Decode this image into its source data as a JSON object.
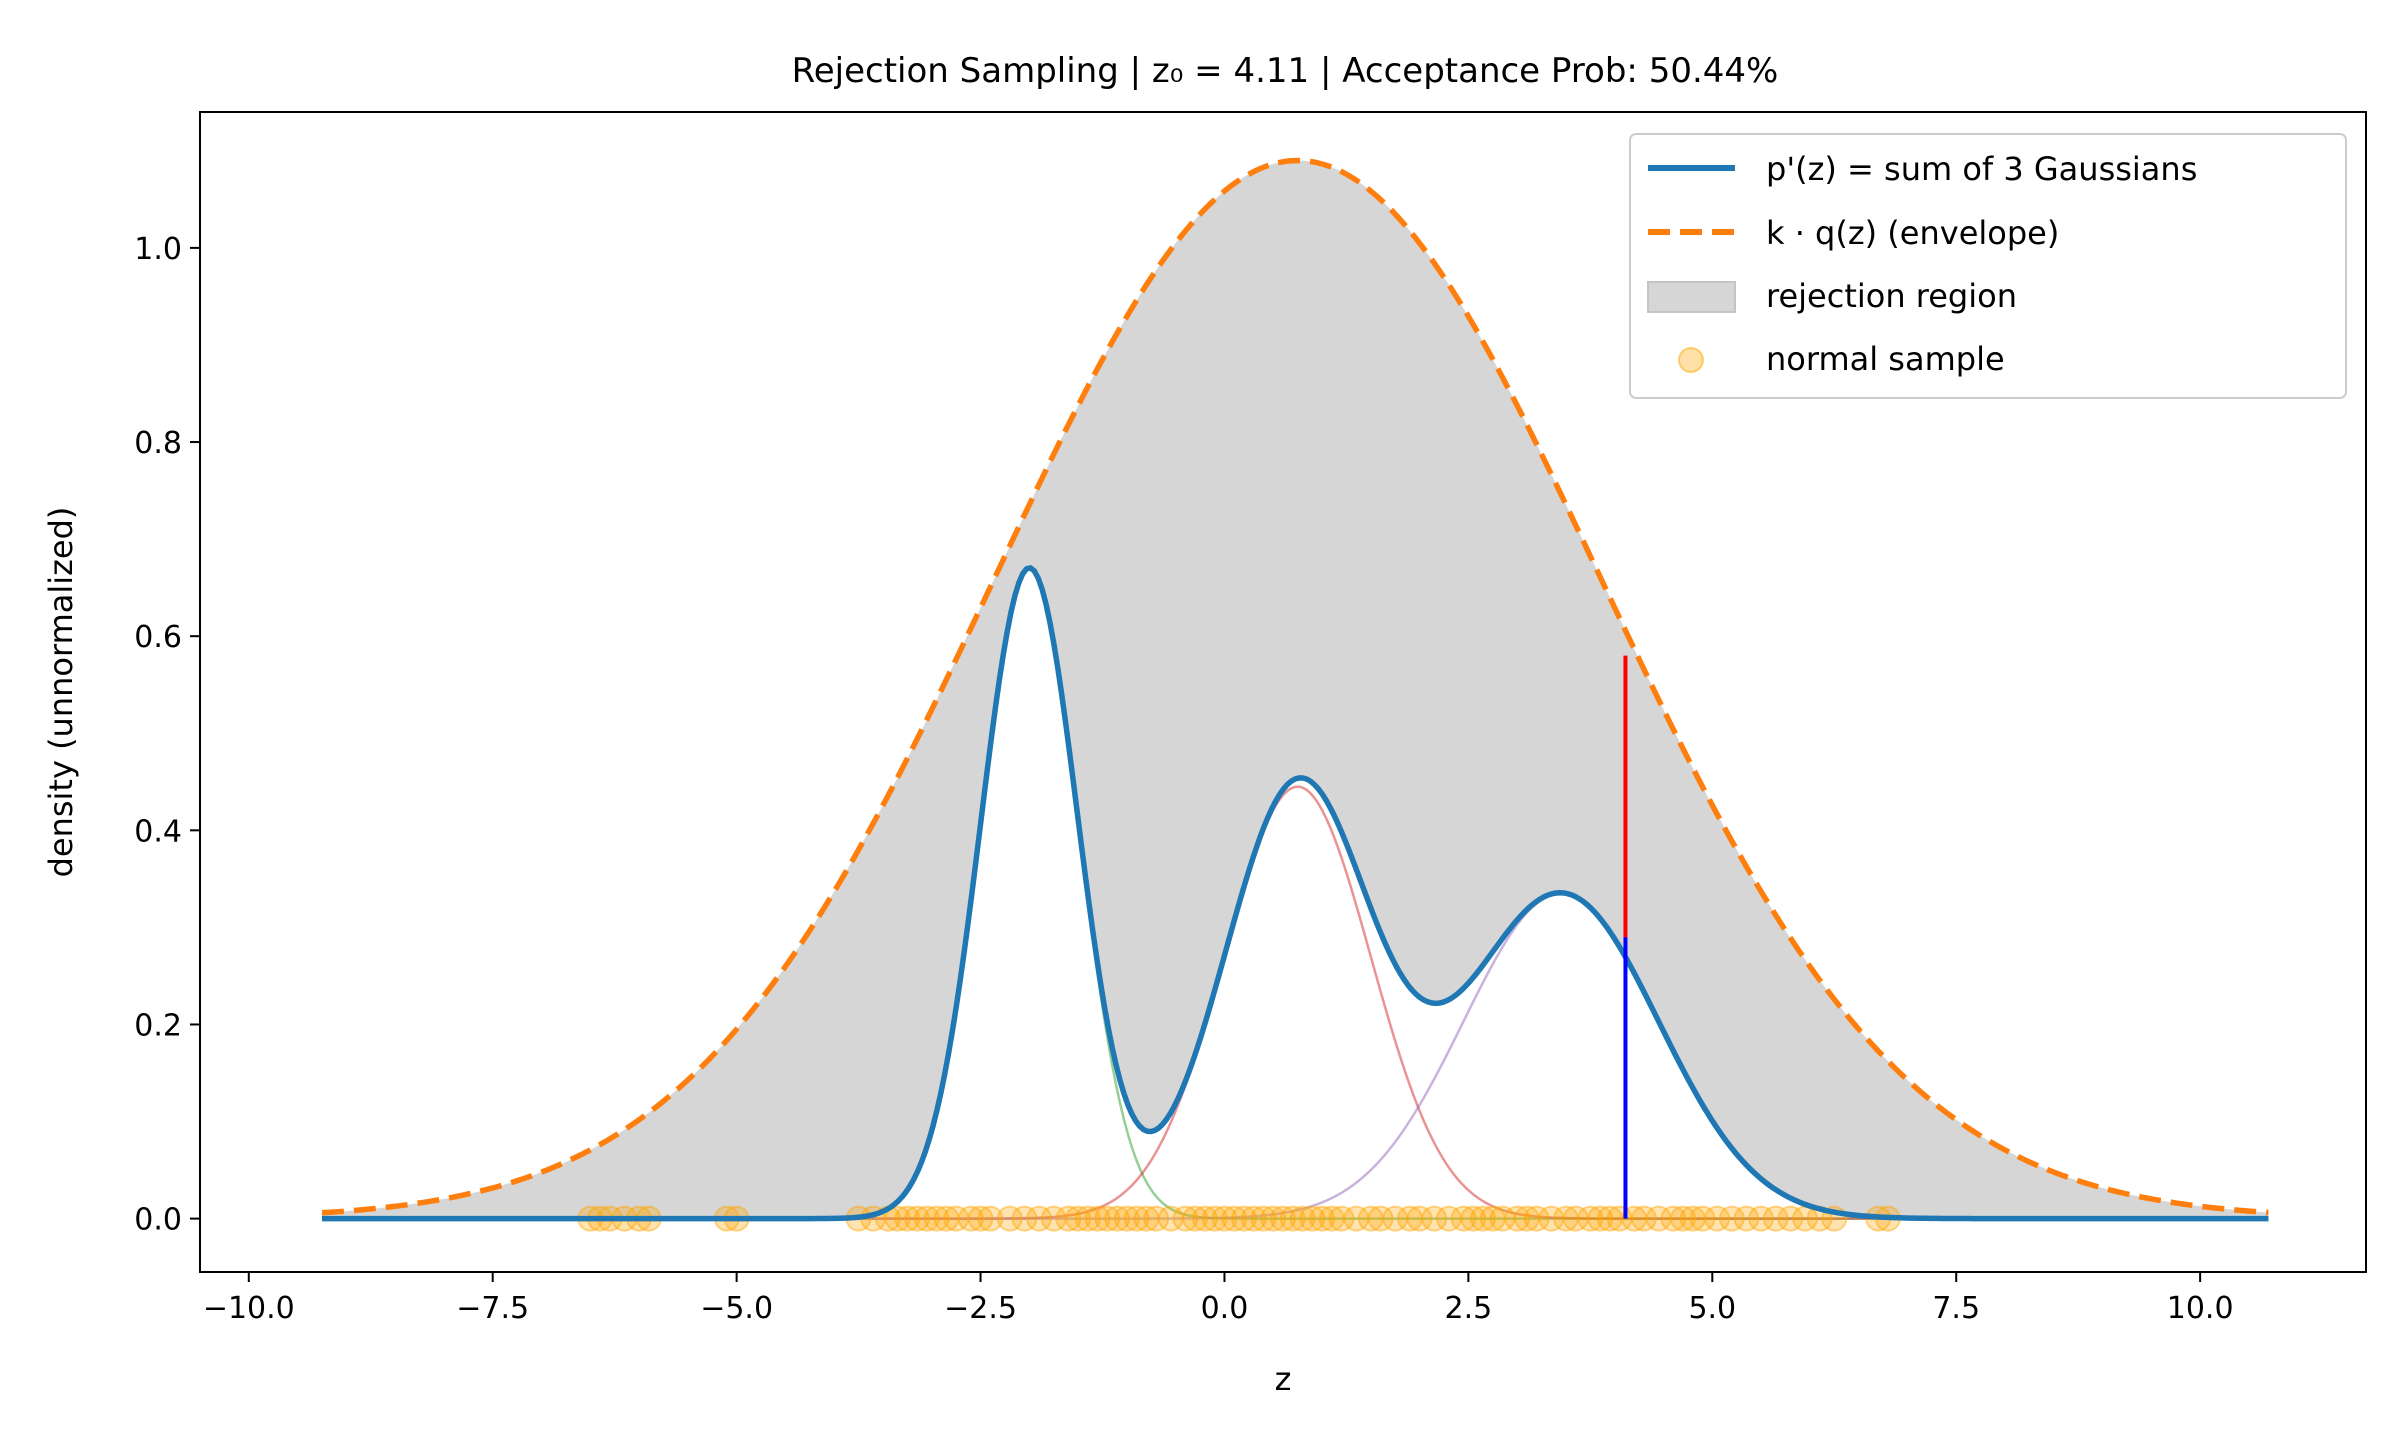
{
  "chart_data": {
    "type": "line",
    "title": "Rejection Sampling | z₀ = 4.11 | Acceptance Prob: 50.44%",
    "xlabel": "z",
    "ylabel": "density (unnormalized)",
    "xlim": [
      -10.5,
      11.7
    ],
    "ylim": [
      -0.055,
      1.14
    ],
    "x_ticks": [
      -10.0,
      -7.5,
      -5.0,
      -2.5,
      0.0,
      2.5,
      5.0,
      7.5,
      10.0
    ],
    "x_tick_labels": [
      "−10.0",
      "−7.5",
      "−5.0",
      "−2.5",
      "0.0",
      "2.5",
      "5.0",
      "7.5",
      "10.0"
    ],
    "y_ticks": [
      0.0,
      0.2,
      0.4,
      0.6,
      0.8,
      1.0
    ],
    "y_tick_labels": [
      "0.0",
      "0.2",
      "0.4",
      "0.6",
      "0.8",
      "1.0"
    ],
    "x_range": [
      -9.25,
      10.7
    ],
    "grid": false,
    "legend_position": "top-right",
    "components": [
      {
        "amplitude": 0.67,
        "mean": -2.0,
        "sd": 0.5,
        "color": "#2ca02c"
      },
      {
        "amplitude": 0.445,
        "mean": 0.75,
        "sd": 0.75,
        "color": "#d62728"
      },
      {
        "amplitude": 0.335,
        "mean": 3.45,
        "sd": 1.0,
        "color": "#9467bd"
      }
    ],
    "envelope": {
      "amplitude": 1.09,
      "mean": 0.75,
      "sd": 3.1
    },
    "series": [
      {
        "name": "p'(z) = sum of 3 Gaussians",
        "color": "#1f77b4",
        "style": "solid"
      },
      {
        "name": "k · q(z) (envelope)",
        "color": "#ff7f0e",
        "style": "dashed"
      },
      {
        "name": "rejection region",
        "color": "#d6d6d6",
        "style": "fill"
      },
      {
        "name": "normal sample",
        "color": "#ffa500",
        "style": "scatter"
      }
    ],
    "z0": 4.11,
    "z0_p": 0.29,
    "z0_envelope": 0.58,
    "accept_color": "#0000ff",
    "reject_color": "#ff0000",
    "samples": [
      -6.5,
      -6.4,
      -6.3,
      -6.15,
      -6.0,
      -5.9,
      -5.1,
      -5.0,
      -3.75,
      -3.6,
      -3.45,
      -3.35,
      -3.25,
      -3.15,
      -3.05,
      -2.95,
      -2.85,
      -2.75,
      -2.6,
      -2.5,
      -2.4,
      -2.2,
      -2.05,
      -1.9,
      -1.75,
      -1.6,
      -1.5,
      -1.4,
      -1.3,
      -1.2,
      -1.1,
      -1.0,
      -0.9,
      -0.8,
      -0.7,
      -0.55,
      -0.4,
      -0.3,
      -0.2,
      -0.1,
      0.0,
      0.1,
      0.2,
      0.3,
      0.4,
      0.5,
      0.6,
      0.7,
      0.8,
      0.9,
      1.0,
      1.1,
      1.2,
      1.35,
      1.5,
      1.6,
      1.75,
      1.9,
      2.0,
      2.15,
      2.3,
      2.45,
      2.55,
      2.65,
      2.75,
      2.85,
      3.0,
      3.1,
      3.2,
      3.35,
      3.5,
      3.6,
      3.75,
      3.85,
      3.95,
      4.05,
      4.2,
      4.3,
      4.45,
      4.6,
      4.7,
      4.8,
      4.9,
      5.05,
      5.2,
      5.35,
      5.5,
      5.65,
      5.8,
      5.95,
      6.1,
      6.25,
      6.7,
      6.8
    ]
  }
}
